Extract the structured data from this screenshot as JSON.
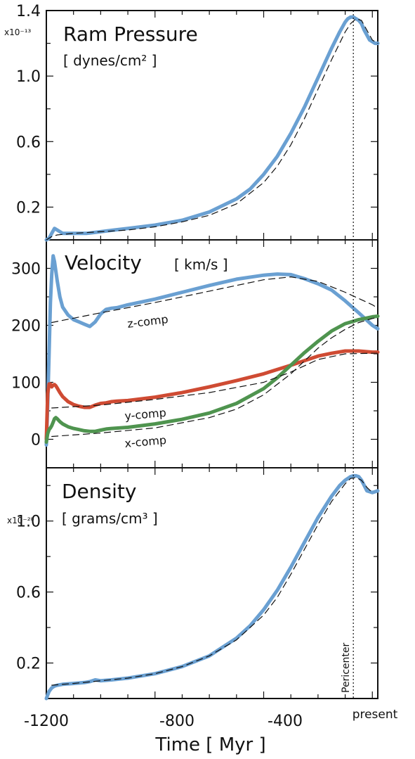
{
  "chart_data": {
    "type": "line",
    "layout": "three vertically stacked panels sharing the time axis",
    "x_label": "Time [ Myr ]",
    "x_ticks": [
      "-1200",
      "-800",
      "-400",
      "present"
    ],
    "xlim": [
      -1200,
      20
    ],
    "pericenter_marker": {
      "label": "Pericenter",
      "x": -70,
      "style": "dotted"
    },
    "panels": [
      {
        "title": "Ram Pressure",
        "unit": "[ dynes/cm² ]",
        "scale": "x10⁻¹³",
        "ylim": [
          0.0,
          1.4
        ],
        "y_ticks": [
          {
            "value": 0.2,
            "label": "0.2"
          },
          {
            "value": 0.6,
            "label": "0.6"
          },
          {
            "value": 1.0,
            "label": "1.0"
          },
          {
            "value": 1.4,
            "label": "1.4"
          }
        ],
        "series": [
          {
            "color": "#6aa0d2",
            "style": "solid",
            "x": [
              -1200,
              -1190,
              -1180,
              -1170,
              -1160,
              -1140,
              -1100,
              -1050,
              -1000,
              -950,
              -900,
              -800,
              -700,
              -600,
              -500,
              -450,
              -400,
              -350,
              -300,
              -250,
              -200,
              -150,
              -120,
              -100,
              -90,
              -80,
              -70,
              -60,
              -50,
              -40,
              -30,
              -10,
              10,
              20
            ],
            "y": [
              0.0,
              0.01,
              0.04,
              0.07,
              0.06,
              0.04,
              0.04,
              0.04,
              0.05,
              0.06,
              0.07,
              0.09,
              0.12,
              0.17,
              0.25,
              0.31,
              0.4,
              0.51,
              0.65,
              0.81,
              0.99,
              1.17,
              1.27,
              1.33,
              1.35,
              1.36,
              1.36,
              1.35,
              1.34,
              1.32,
              1.28,
              1.22,
              1.2,
              1.2
            ]
          },
          {
            "color": "#111111",
            "style": "dashed",
            "x": [
              -1200,
              -1180,
              -1160,
              -1100,
              -1000,
              -900,
              -800,
              -700,
              -600,
              -500,
              -400,
              -350,
              -300,
              -250,
              -200,
              -150,
              -100,
              -80,
              -60,
              -40,
              -20,
              0,
              20
            ],
            "y": [
              0.0,
              0.02,
              0.03,
              0.04,
              0.05,
              0.06,
              0.08,
              0.11,
              0.15,
              0.22,
              0.35,
              0.45,
              0.58,
              0.74,
              0.92,
              1.1,
              1.27,
              1.32,
              1.35,
              1.34,
              1.28,
              1.22,
              1.2
            ]
          }
        ]
      },
      {
        "title": "Velocity",
        "unit": "[ km/s ]",
        "ylim": [
          -50,
          350
        ],
        "y_ticks": [
          {
            "value": 0,
            "label": "0"
          },
          {
            "value": 100,
            "label": "100"
          },
          {
            "value": 200,
            "label": "200"
          },
          {
            "value": 300,
            "label": "300"
          }
        ],
        "series": [
          {
            "name": "z-comp",
            "color": "#6aa0d2",
            "style": "solid",
            "x": [
              -1200,
              -1195,
              -1190,
              -1185,
              -1180,
              -1175,
              -1170,
              -1160,
              -1150,
              -1140,
              -1120,
              -1100,
              -1080,
              -1060,
              -1040,
              -1020,
              -1000,
              -980,
              -960,
              -940,
              -900,
              -800,
              -700,
              -600,
              -500,
              -400,
              -350,
              -300,
              -250,
              -200,
              -150,
              -100,
              -50,
              0,
              20
            ],
            "y": [
              -10,
              60,
              150,
              240,
              290,
              322,
              312,
              278,
              250,
              232,
              218,
              210,
              206,
              202,
              198,
              206,
              220,
              228,
              230,
              231,
              236,
              246,
              258,
              270,
              281,
              288,
              290,
              289,
              282,
              273,
              262,
              243,
              222,
              200,
              194
            ]
          },
          {
            "name": "y-comp",
            "color": "#cf4b33",
            "style": "solid",
            "x": [
              -1200,
              -1195,
              -1190,
              -1185,
              -1180,
              -1175,
              -1170,
              -1165,
              -1160,
              -1150,
              -1140,
              -1120,
              -1100,
              -1080,
              -1060,
              -1040,
              -1020,
              -1000,
              -980,
              -960,
              -940,
              -900,
              -800,
              -700,
              -600,
              -500,
              -400,
              -300,
              -200,
              -150,
              -100,
              -50,
              0,
              20
            ],
            "y": [
              0,
              80,
              97,
              97,
              92,
              95,
              96,
              94,
              90,
              82,
              75,
              66,
              61,
              58,
              56,
              56,
              60,
              63,
              64,
              66,
              67,
              68,
              74,
              82,
              92,
              103,
              115,
              130,
              146,
              151,
              155,
              155,
              153,
              153
            ]
          },
          {
            "name": "x-comp",
            "color": "#4f944f",
            "style": "solid",
            "x": [
              -1200,
              -1195,
              -1190,
              -1185,
              -1180,
              -1175,
              -1170,
              -1165,
              -1160,
              -1150,
              -1140,
              -1120,
              -1100,
              -1080,
              -1060,
              -1040,
              -1020,
              -1000,
              -980,
              -960,
              -900,
              -800,
              -700,
              -600,
              -500,
              -400,
              -350,
              -300,
              -250,
              -200,
              -150,
              -100,
              -50,
              0,
              20
            ],
            "y": [
              -5,
              10,
              17,
              20,
              24,
              30,
              36,
              38,
              36,
              31,
              27,
              22,
              19,
              17,
              15,
              14,
              14,
              16,
              18,
              19,
              21,
              27,
              35,
              46,
              63,
              89,
              108,
              130,
              152,
              172,
              190,
              203,
              210,
              215,
              216
            ]
          },
          {
            "color": "#111111",
            "style": "dashed",
            "x": [
              -1180,
              -1000,
              -800,
              -600,
              -400,
              -300,
              -200,
              -100,
              0,
              20
            ],
            "y": [
              205,
              222,
              240,
              260,
              280,
              285,
              277,
              258,
              236,
              230
            ]
          },
          {
            "color": "#111111",
            "style": "dashed",
            "x": [
              -1180,
              -1000,
              -800,
              -600,
              -400,
              -300,
              -200,
              -100,
              0,
              20
            ],
            "y": [
              55,
              60,
              70,
              82,
              100,
              118,
              140,
              150,
              151,
              151
            ]
          },
          {
            "color": "#111111",
            "style": "dashed",
            "x": [
              -1180,
              -1000,
              -800,
              -600,
              -500,
              -400,
              -300,
              -200,
              -150,
              -100,
              -50,
              0,
              20
            ],
            "y": [
              5,
              11,
              20,
              38,
              53,
              78,
              115,
              160,
              178,
              193,
              205,
              212,
              214
            ]
          }
        ],
        "series_labels": [
          "z-comp",
          "y-comp",
          "x-comp"
        ]
      },
      {
        "title": "Density",
        "unit": "[ grams/cm³ ]",
        "scale": "x10⁻²⁸",
        "ylim": [
          0.0,
          1.3
        ],
        "y_ticks": [
          {
            "value": 0.2,
            "label": "0.2"
          },
          {
            "value": 0.6,
            "label": "0.6"
          },
          {
            "value": 1.0,
            "label": "1.0"
          }
        ],
        "series": [
          {
            "color": "#6aa0d2",
            "style": "solid",
            "x": [
              -1200,
              -1195,
              -1190,
              -1180,
              -1170,
              -1160,
              -1140,
              -1100,
              -1060,
              -1040,
              -1020,
              -1000,
              -960,
              -900,
              -800,
              -700,
              -600,
              -500,
              -450,
              -400,
              -350,
              -300,
              -250,
              -200,
              -150,
              -120,
              -100,
              -80,
              -70,
              -60,
              -50,
              -40,
              -30,
              -20,
              0,
              20
            ],
            "y": [
              0.0,
              0.02,
              0.04,
              0.06,
              0.07,
              0.075,
              0.08,
              0.085,
              0.09,
              0.095,
              0.105,
              0.1,
              0.105,
              0.115,
              0.14,
              0.18,
              0.24,
              0.34,
              0.41,
              0.5,
              0.61,
              0.74,
              0.88,
              1.02,
              1.14,
              1.2,
              1.23,
              1.25,
              1.255,
              1.255,
              1.25,
              1.23,
              1.2,
              1.17,
              1.16,
              1.17
            ]
          },
          {
            "color": "#111111",
            "style": "dashed",
            "x": [
              -1180,
              -1100,
              -1000,
              -900,
              -800,
              -700,
              -600,
              -500,
              -400,
              -350,
              -300,
              -250,
              -200,
              -150,
              -100,
              -80,
              -60,
              -40,
              -20,
              0
            ],
            "y": [
              0.075,
              0.085,
              0.1,
              0.115,
              0.14,
              0.18,
              0.24,
              0.33,
              0.47,
              0.57,
              0.7,
              0.84,
              0.98,
              1.11,
              1.21,
              1.24,
              1.245,
              1.23,
              1.19,
              1.16
            ]
          }
        ]
      }
    ]
  }
}
